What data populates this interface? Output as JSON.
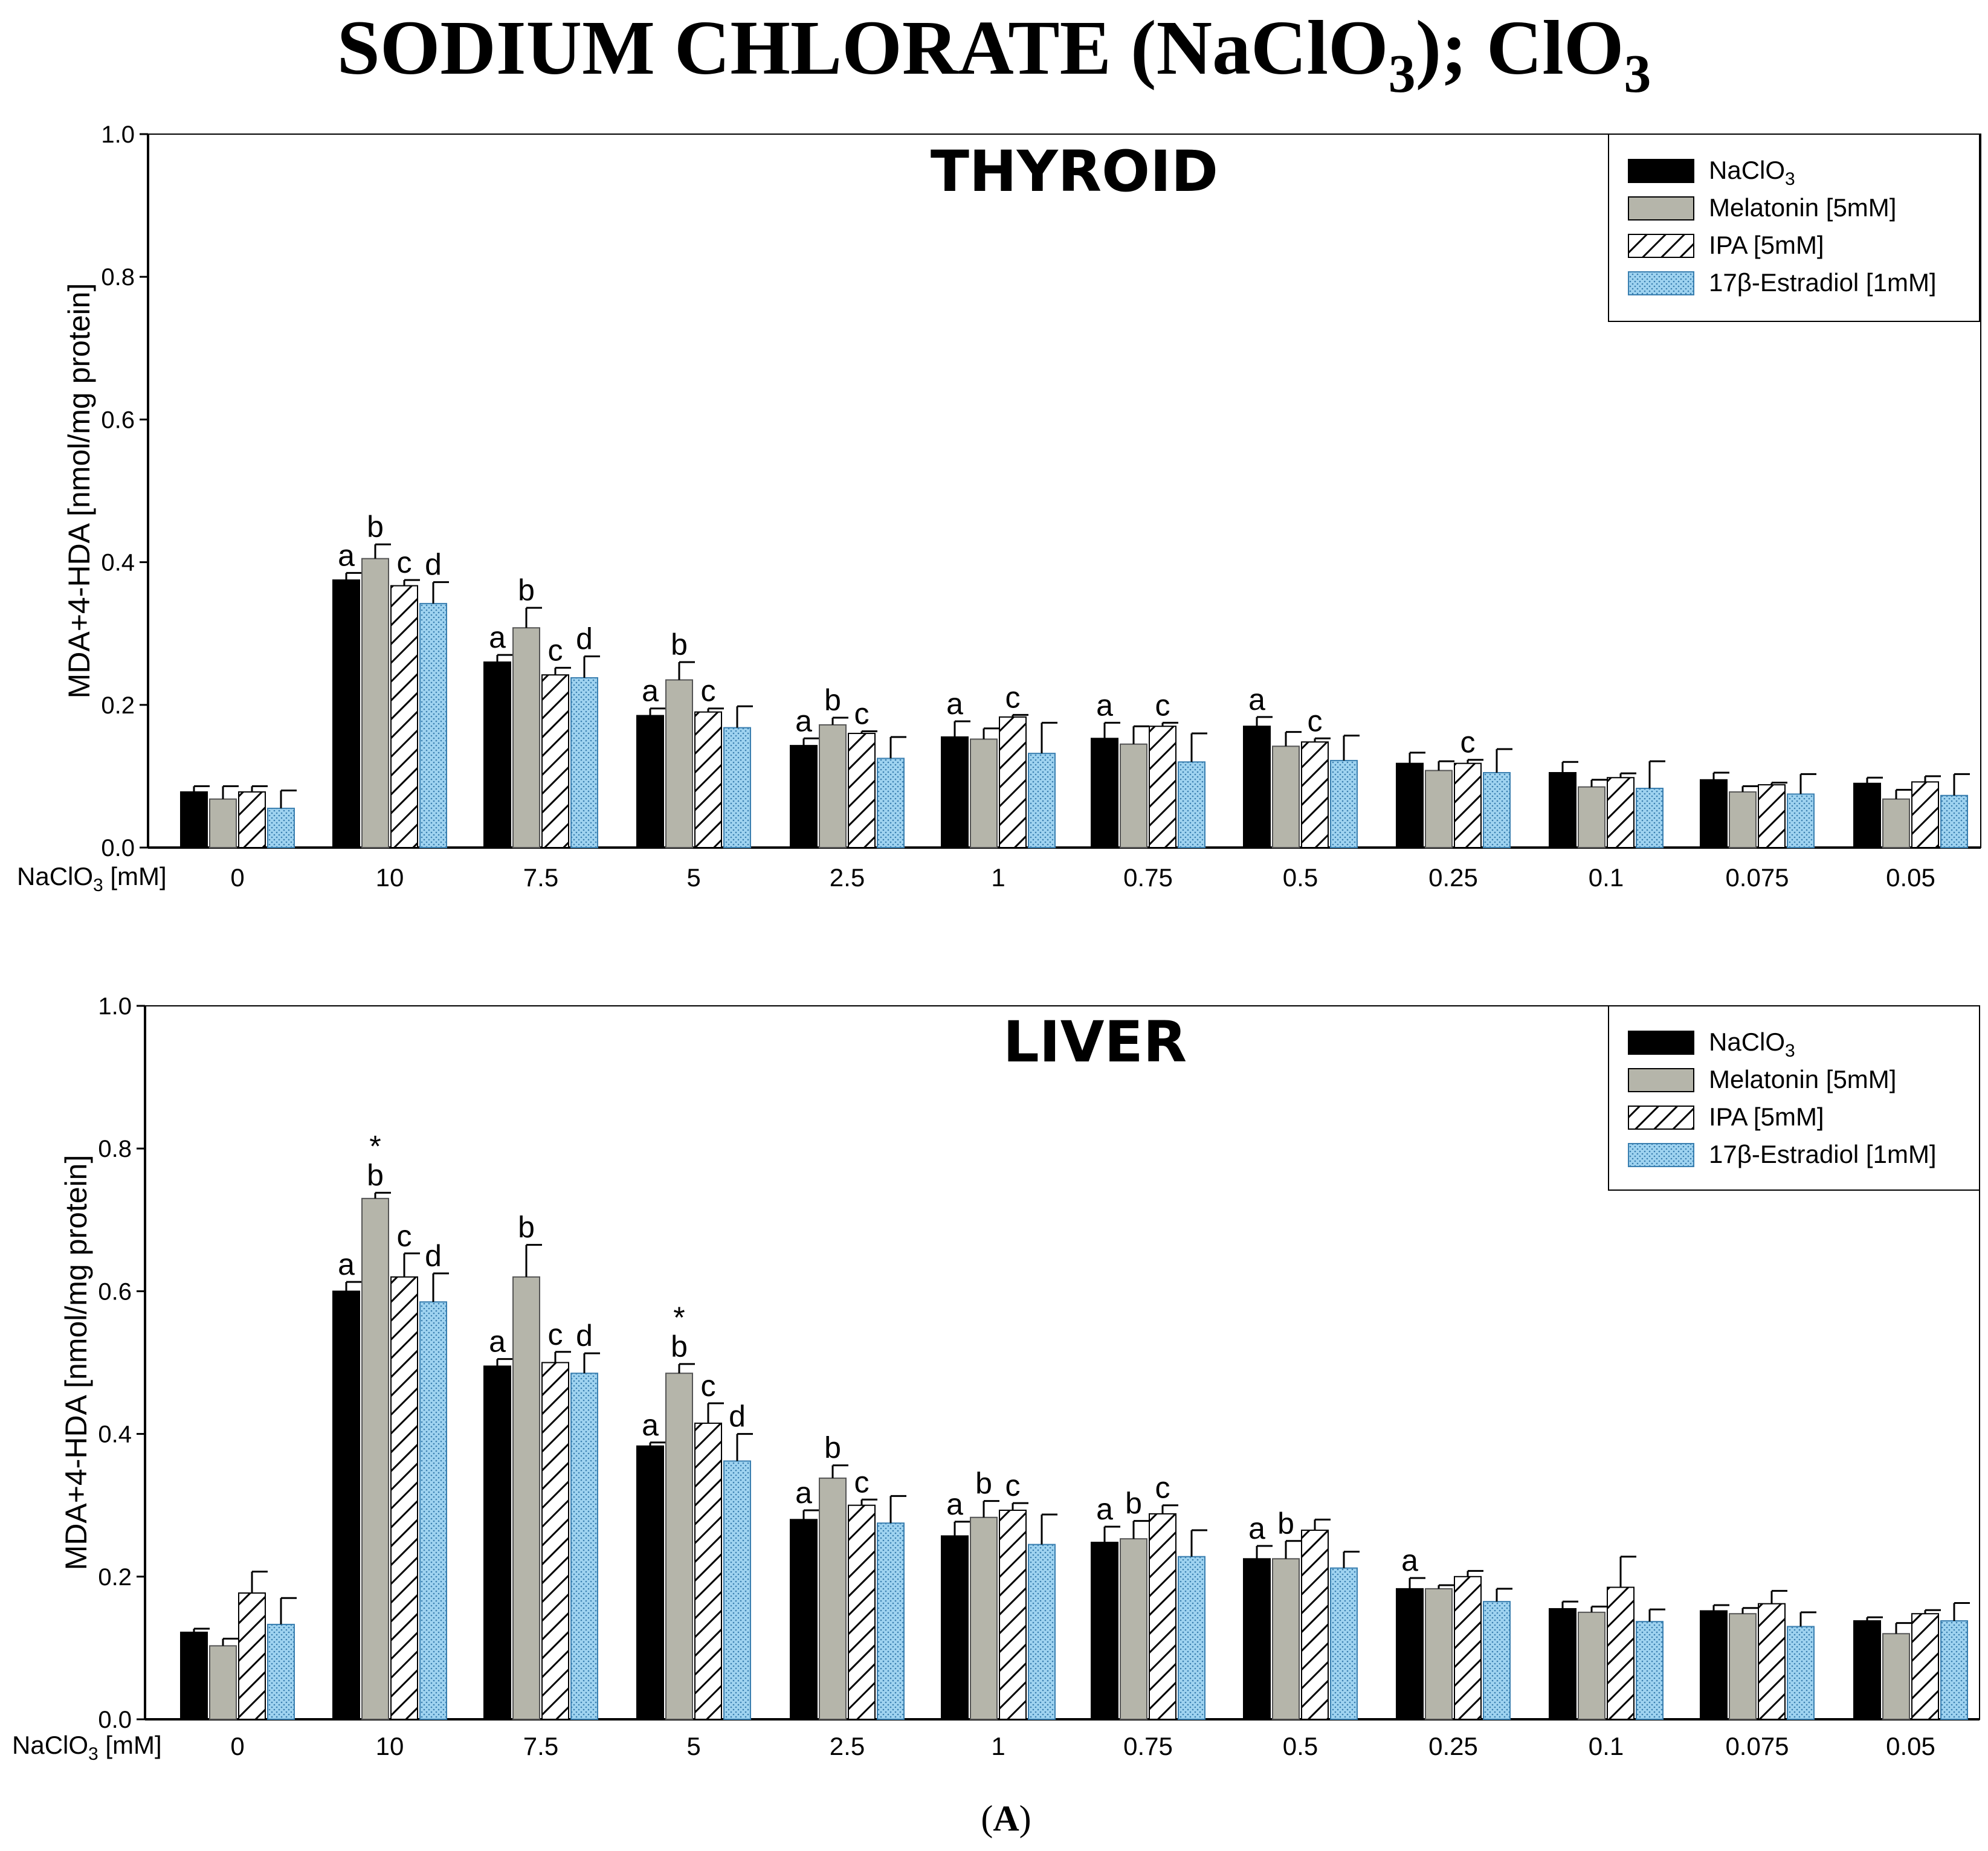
{
  "figure": {
    "title_main": "SODIUM CHLORATE (NaClO",
    "title_sub1": "3",
    "title_mid": "); ClO",
    "title_sub2": "3",
    "panel_label": "(A)",
    "panel_letter": "A",
    "paren_open": "(",
    "paren_close": ")"
  },
  "colors": {
    "naclo3": "#000000",
    "melatonin": "#b5b5aa",
    "ipa_fill": "#ffffff",
    "estradiol": "#9fd3f0",
    "axis": "#000000"
  },
  "chart_data": [
    {
      "type": "bar",
      "title": "THYROID",
      "ylabel": "MDA+4-HDA [nmol/mg protein]",
      "xlabel_main": "NaClO",
      "xlabel_sub": "3",
      "xlabel_tail": " [mM]",
      "ylim": [
        0.0,
        1.0
      ],
      "yticks": [
        "0.0",
        "0.2",
        "0.4",
        "0.6",
        "0.8",
        "1.0"
      ],
      "categories": [
        "0",
        "10",
        "7.5",
        "5",
        "2.5",
        "1",
        "0.75",
        "0.5",
        "0.25",
        "0.1",
        "0.075",
        "0.05"
      ],
      "legend": [
        {
          "label_main": "NaClO",
          "label_sub": "3",
          "pattern": "solid-black"
        },
        {
          "label_main": "Melatonin [5mM]",
          "label_sub": "",
          "pattern": "solid-gray"
        },
        {
          "label_main": "IPA [5mM]",
          "label_sub": "",
          "pattern": "hatch"
        },
        {
          "label_main": "17β-Estradiol [1mM]",
          "label_sub": "",
          "pattern": "dotted-blue"
        }
      ],
      "series": [
        {
          "name": "NaClO3",
          "values": [
            0.078,
            0.375,
            0.26,
            0.185,
            0.143,
            0.155,
            0.153,
            0.17,
            0.118,
            0.105,
            0.095,
            0.09
          ],
          "errors": [
            0.008,
            0.01,
            0.01,
            0.01,
            0.01,
            0.022,
            0.022,
            0.013,
            0.015,
            0.015,
            0.01,
            0.008
          ]
        },
        {
          "name": "Melatonin [5mM]",
          "values": [
            0.068,
            0.405,
            0.308,
            0.235,
            0.172,
            0.152,
            0.145,
            0.142,
            0.108,
            0.085,
            0.078,
            0.068
          ],
          "errors": [
            0.018,
            0.02,
            0.028,
            0.025,
            0.01,
            0.015,
            0.025,
            0.02,
            0.013,
            0.01,
            0.008,
            0.013
          ]
        },
        {
          "name": "IPA [5mM]",
          "values": [
            0.078,
            0.367,
            0.242,
            0.19,
            0.16,
            0.183,
            0.17,
            0.148,
            0.118,
            0.098,
            0.088,
            0.092
          ],
          "errors": [
            0.008,
            0.008,
            0.01,
            0.005,
            0.003,
            0.003,
            0.005,
            0.005,
            0.005,
            0.006,
            0.003,
            0.008
          ]
        },
        {
          "name": "17β-Estradiol [1mM]",
          "values": [
            0.055,
            0.342,
            0.238,
            0.168,
            0.125,
            0.132,
            0.12,
            0.122,
            0.105,
            0.083,
            0.075,
            0.073
          ],
          "errors": [
            0.025,
            0.03,
            0.03,
            0.03,
            0.03,
            0.043,
            0.04,
            0.035,
            0.033,
            0.038,
            0.028,
            0.03
          ]
        }
      ],
      "sig_labels": [
        [
          "",
          "",
          "",
          ""
        ],
        [
          "a",
          "b",
          "c",
          "d"
        ],
        [
          "a",
          "b",
          "c",
          "d"
        ],
        [
          "a",
          "b",
          "c",
          ""
        ],
        [
          "a",
          "b",
          "c",
          ""
        ],
        [
          "a",
          "",
          "c",
          ""
        ],
        [
          "a",
          "",
          "c",
          ""
        ],
        [
          "a",
          "",
          "c",
          ""
        ],
        [
          "",
          "",
          "c",
          ""
        ],
        [
          "",
          "",
          "",
          ""
        ],
        [
          "",
          "",
          "",
          ""
        ],
        [
          "",
          "",
          "",
          ""
        ]
      ],
      "sig_stars": [
        [
          "",
          "",
          "",
          ""
        ],
        [
          "",
          "",
          "",
          ""
        ],
        [
          "",
          "",
          "",
          ""
        ],
        [
          "",
          "",
          "",
          ""
        ],
        [
          "",
          "",
          "",
          ""
        ],
        [
          "",
          "",
          "",
          ""
        ],
        [
          "",
          "",
          "",
          ""
        ],
        [
          "",
          "",
          "",
          ""
        ],
        [
          "",
          "",
          "",
          ""
        ],
        [
          "",
          "",
          "",
          ""
        ],
        [
          "",
          "",
          "",
          ""
        ],
        [
          "",
          "",
          "",
          ""
        ]
      ]
    },
    {
      "type": "bar",
      "title": "LIVER",
      "ylabel": "MDA+4-HDA [nmol/mg protein]",
      "xlabel_main": "NaClO",
      "xlabel_sub": "3",
      "xlabel_tail": " [mM]",
      "ylim": [
        0.0,
        1.0
      ],
      "yticks": [
        "0.0",
        "0.2",
        "0.4",
        "0.6",
        "0.8",
        "1.0"
      ],
      "categories": [
        "0",
        "10",
        "7.5",
        "5",
        "2.5",
        "1",
        "0.75",
        "0.5",
        "0.25",
        "0.1",
        "0.075",
        "0.05"
      ],
      "legend": [
        {
          "label_main": "NaClO",
          "label_sub": "3",
          "pattern": "solid-black"
        },
        {
          "label_main": "Melatonin [5mM]",
          "label_sub": "",
          "pattern": "solid-gray"
        },
        {
          "label_main": "IPA [5mM]",
          "label_sub": "",
          "pattern": "hatch"
        },
        {
          "label_main": "17β-Estradiol [1mM]",
          "label_sub": "",
          "pattern": "dotted-blue"
        }
      ],
      "series": [
        {
          "name": "NaClO3",
          "values": [
            0.122,
            0.6,
            0.495,
            0.383,
            0.28,
            0.257,
            0.248,
            0.225,
            0.183,
            0.155,
            0.152,
            0.138
          ],
          "errors": [
            0.005,
            0.013,
            0.01,
            0.005,
            0.013,
            0.02,
            0.022,
            0.018,
            0.015,
            0.01,
            0.008,
            0.005
          ]
        },
        {
          "name": "Melatonin [5mM]",
          "values": [
            0.103,
            0.73,
            0.62,
            0.485,
            0.338,
            0.283,
            0.253,
            0.225,
            0.183,
            0.15,
            0.148,
            0.12
          ],
          "errors": [
            0.01,
            0.008,
            0.045,
            0.013,
            0.018,
            0.023,
            0.025,
            0.025,
            0.005,
            0.008,
            0.008,
            0.015
          ]
        },
        {
          "name": "IPA [5mM]",
          "values": [
            0.177,
            0.62,
            0.5,
            0.415,
            0.3,
            0.293,
            0.288,
            0.265,
            0.2,
            0.185,
            0.162,
            0.148
          ],
          "errors": [
            0.03,
            0.033,
            0.015,
            0.028,
            0.008,
            0.01,
            0.012,
            0.015,
            0.008,
            0.043,
            0.018,
            0.005
          ]
        },
        {
          "name": "17β-Estradiol [1mM]",
          "values": [
            0.133,
            0.585,
            0.485,
            0.362,
            0.275,
            0.245,
            0.228,
            0.212,
            0.165,
            0.137,
            0.13,
            0.138
          ],
          "errors": [
            0.037,
            0.04,
            0.028,
            0.038,
            0.038,
            0.042,
            0.037,
            0.023,
            0.018,
            0.017,
            0.02,
            0.025
          ]
        }
      ],
      "sig_labels": [
        [
          "",
          "",
          "",
          ""
        ],
        [
          "a",
          "b",
          "c",
          "d"
        ],
        [
          "a",
          "b",
          "c",
          "d"
        ],
        [
          "a",
          "b",
          "c",
          "d"
        ],
        [
          "a",
          "b",
          "c",
          ""
        ],
        [
          "a",
          "b",
          "c",
          ""
        ],
        [
          "a",
          "b",
          "c",
          ""
        ],
        [
          "a",
          "b",
          "",
          ""
        ],
        [
          "a",
          "",
          "",
          ""
        ],
        [
          "",
          "",
          "",
          ""
        ],
        [
          "",
          "",
          "",
          ""
        ],
        [
          "",
          "",
          "",
          ""
        ]
      ],
      "sig_stars": [
        [
          "",
          "",
          "",
          ""
        ],
        [
          "",
          "*",
          "",
          ""
        ],
        [
          "",
          "",
          "",
          ""
        ],
        [
          "",
          "*",
          "",
          ""
        ],
        [
          "",
          "",
          "",
          ""
        ],
        [
          "",
          "",
          "",
          ""
        ],
        [
          "",
          "",
          "",
          ""
        ],
        [
          "",
          "",
          "",
          ""
        ],
        [
          "",
          "",
          "",
          ""
        ],
        [
          "",
          "",
          "",
          ""
        ],
        [
          "",
          "",
          "",
          ""
        ],
        [
          "",
          "",
          "",
          ""
        ]
      ]
    }
  ]
}
